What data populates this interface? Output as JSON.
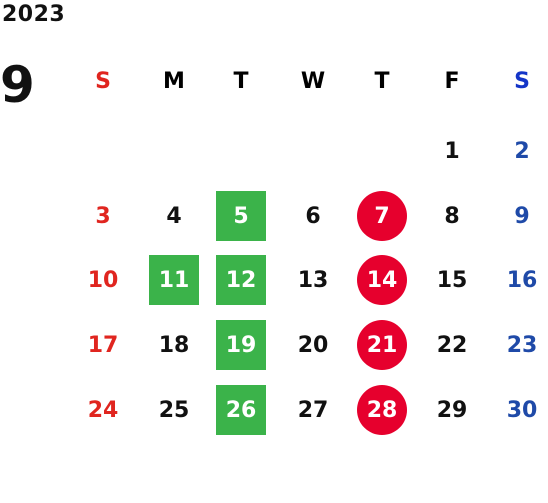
{
  "calendar": {
    "year": "2023",
    "month": "9",
    "weekdays": [
      "S",
      "M",
      "T",
      "W",
      "T",
      "F",
      "S"
    ],
    "weeks": [
      [
        null,
        null,
        null,
        null,
        null,
        {
          "d": "1"
        },
        {
          "d": "2"
        }
      ],
      [
        {
          "d": "3"
        },
        {
          "d": "4"
        },
        {
          "d": "5",
          "mark": "green-square"
        },
        {
          "d": "6"
        },
        {
          "d": "7",
          "mark": "red-circle"
        },
        {
          "d": "8"
        },
        {
          "d": "9"
        }
      ],
      [
        {
          "d": "10"
        },
        {
          "d": "11",
          "mark": "green-square"
        },
        {
          "d": "12",
          "mark": "green-square"
        },
        {
          "d": "13"
        },
        {
          "d": "14",
          "mark": "red-circle"
        },
        {
          "d": "15"
        },
        {
          "d": "16"
        }
      ],
      [
        {
          "d": "17"
        },
        {
          "d": "18"
        },
        {
          "d": "19",
          "mark": "green-square"
        },
        {
          "d": "20"
        },
        {
          "d": "21",
          "mark": "red-circle"
        },
        {
          "d": "22"
        },
        {
          "d": "23"
        }
      ],
      [
        {
          "d": "24"
        },
        {
          "d": "25"
        },
        {
          "d": "26",
          "mark": "green-square"
        },
        {
          "d": "27"
        },
        {
          "d": "28",
          "mark": "red-circle"
        },
        {
          "d": "29"
        },
        {
          "d": "30"
        }
      ]
    ]
  },
  "colors": {
    "sunday": "#e0251f",
    "saturday": "#1f4aa8",
    "saturday_header": "#1435c8",
    "green_mark": "#3bb34a",
    "red_mark": "#e6002d"
  }
}
